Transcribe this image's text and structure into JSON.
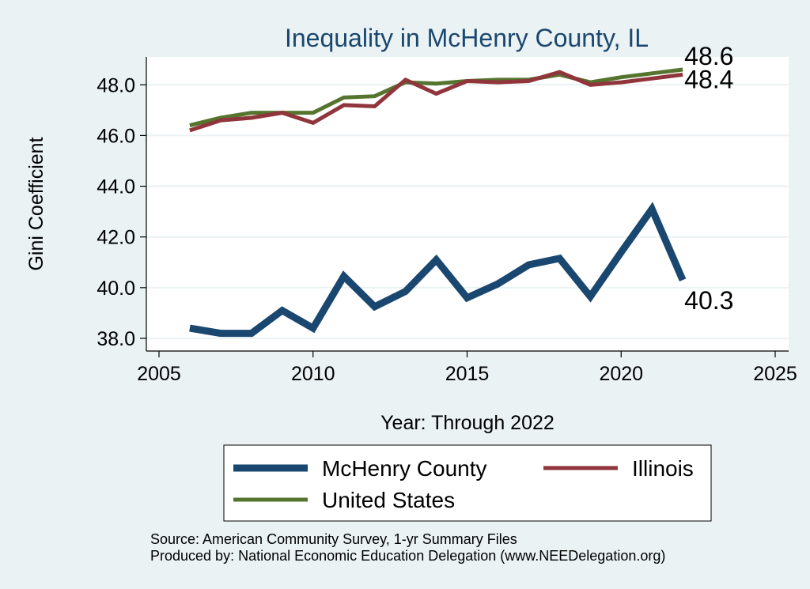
{
  "chart_data": {
    "type": "line",
    "title": "Inequality in McHenry County, IL",
    "xlabel": "Year: Through 2022",
    "ylabel": "Gini Coefficient",
    "xlim": [
      2005,
      2025
    ],
    "ylim": [
      37.5,
      49.1
    ],
    "x_ticks": [
      2005,
      2010,
      2015,
      2020,
      2025
    ],
    "y_ticks": [
      38.0,
      40.0,
      42.0,
      44.0,
      46.0,
      48.0
    ],
    "x_tick_labels": [
      "2005",
      "2010",
      "2015",
      "2020",
      "2025"
    ],
    "y_tick_labels": [
      "38.0",
      "40.0",
      "42.0",
      "44.0",
      "46.0",
      "48.0"
    ],
    "grid": true,
    "x": [
      2006,
      2007,
      2008,
      2009,
      2010,
      2011,
      2012,
      2013,
      2014,
      2015,
      2016,
      2017,
      2018,
      2019,
      2020,
      2021,
      2022
    ],
    "series": [
      {
        "name": "McHenry County",
        "color": "#1a476f",
        "values": [
          38.4,
          38.2,
          38.2,
          39.1,
          38.4,
          40.45,
          39.25,
          39.85,
          41.1,
          39.6,
          40.15,
          40.9,
          41.15,
          39.65,
          41.4,
          43.1,
          40.3
        ],
        "end_label": "40.3"
      },
      {
        "name": "Illinois",
        "color": "#90353b",
        "values": [
          46.2,
          46.6,
          46.7,
          46.9,
          46.5,
          47.2,
          47.15,
          48.2,
          47.65,
          48.15,
          48.1,
          48.15,
          48.5,
          48.0,
          48.1,
          48.25,
          48.4
        ],
        "end_label": "48.4"
      },
      {
        "name": "United States",
        "color": "#55752f",
        "values": [
          46.4,
          46.7,
          46.9,
          46.9,
          46.9,
          47.5,
          47.55,
          48.1,
          48.05,
          48.15,
          48.2,
          48.2,
          48.4,
          48.1,
          48.3,
          48.45,
          48.6
        ],
        "end_label": "48.6"
      }
    ],
    "legend": [
      {
        "label": "McHenry County",
        "color": "#1a476f"
      },
      {
        "label": "Illinois",
        "color": "#90353b"
      },
      {
        "label": "United States",
        "color": "#55752f"
      }
    ],
    "notes": [
      "Source: American Community Survey, 1-yr Summary Files",
      "Produced by: National Economic Education Delegation (www.NEEDelegation.org)"
    ]
  }
}
